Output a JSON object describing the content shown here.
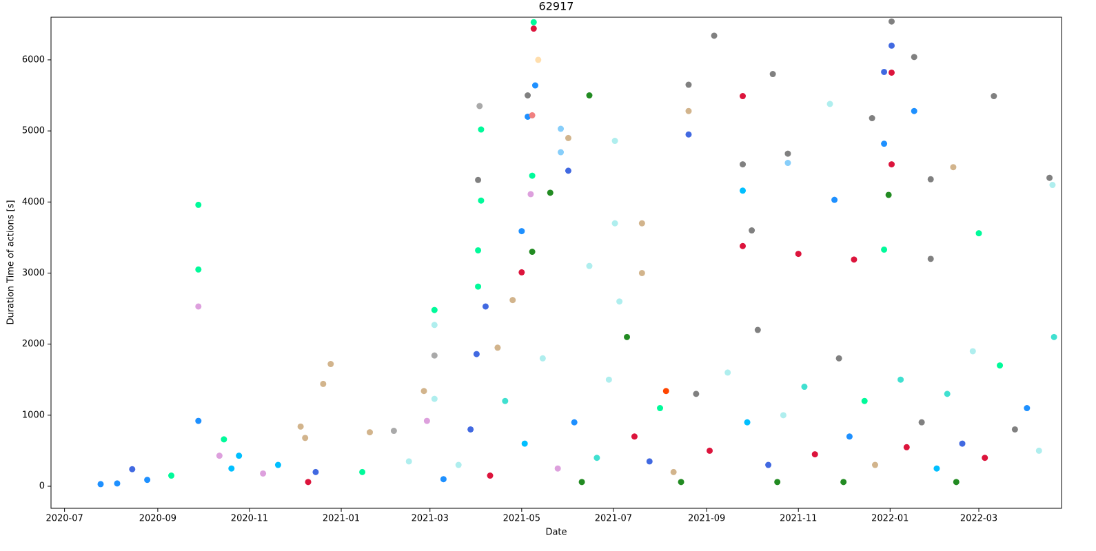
{
  "chart_data": {
    "type": "scatter",
    "title": "62917",
    "x_label": "Date",
    "y_label": "Duration Time of actions [s]",
    "xlim": [
      "2020-06-22",
      "2022-04-25"
    ],
    "ylim": [
      -310,
      6600
    ],
    "xticks": [
      {
        "value": "2020-07-01",
        "label": "2020-07"
      },
      {
        "value": "2020-09-01",
        "label": "2020-09"
      },
      {
        "value": "2020-11-01",
        "label": "2020-11"
      },
      {
        "value": "2021-01-01",
        "label": "2021-01"
      },
      {
        "value": "2021-03-01",
        "label": "2021-03"
      },
      {
        "value": "2021-05-01",
        "label": "2021-05"
      },
      {
        "value": "2021-07-01",
        "label": "2021-07"
      },
      {
        "value": "2021-09-01",
        "label": "2021-09"
      },
      {
        "value": "2021-11-01",
        "label": "2021-11"
      },
      {
        "value": "2022-01-01",
        "label": "2022-01"
      },
      {
        "value": "2022-03-01",
        "label": "2022-03"
      }
    ],
    "yticks": [
      0,
      1000,
      2000,
      3000,
      4000,
      5000,
      6000
    ],
    "grid": false,
    "x": [
      "2020-07-25",
      "2020-08-05",
      "2020-08-15",
      "2020-08-25",
      "2020-09-10",
      "2020-09-28",
      "2020-09-28",
      "2020-09-28",
      "2020-09-28",
      "2020-10-15",
      "2020-10-12",
      "2020-10-25",
      "2020-10-20",
      "2020-11-10",
      "2020-11-20",
      "2020-12-05",
      "2020-12-08",
      "2020-12-20",
      "2020-12-25",
      "2020-12-15",
      "2020-12-10",
      "2021-01-20",
      "2021-02-05",
      "2021-02-25",
      "2021-02-27",
      "2021-03-04",
      "2021-03-04",
      "2021-03-04",
      "2021-03-04",
      "2021-02-15",
      "2021-01-15",
      "2021-03-10",
      "2021-04-04",
      "2021-04-03",
      "2021-04-02",
      "2021-04-04",
      "2021-04-02",
      "2021-04-02",
      "2021-04-07",
      "2021-04-01",
      "2021-04-15",
      "2021-04-25",
      "2021-05-01",
      "2021-05-01",
      "2021-05-05",
      "2021-05-05",
      "2021-05-09",
      "2021-05-09",
      "2021-05-10",
      "2021-05-08",
      "2021-05-12",
      "2021-05-08",
      "2021-05-08",
      "2021-05-07",
      "2021-05-20",
      "2021-05-27",
      "2021-05-27",
      "2021-06-01",
      "2021-06-01",
      "2021-06-15",
      "2021-06-15",
      "2021-07-02",
      "2021-07-02",
      "2021-07-10",
      "2021-07-20",
      "2021-07-20",
      "2021-08-05",
      "2021-08-20",
      "2021-08-20",
      "2021-08-20",
      "2021-09-06",
      "2021-09-25",
      "2021-09-25",
      "2021-09-25",
      "2021-09-25",
      "2021-10-01",
      "2021-10-15",
      "2021-10-25",
      "2021-10-25",
      "2021-11-01",
      "2021-11-22",
      "2021-11-25",
      "2021-12-08",
      "2021-12-20",
      "2021-12-28",
      "2021-12-28",
      "2021-12-28",
      "2022-01-02",
      "2022-01-02",
      "2022-01-02",
      "2022-01-02",
      "2021-12-31",
      "2022-01-17",
      "2022-01-17",
      "2022-01-28",
      "2022-01-28",
      "2022-02-12",
      "2022-03-01",
      "2022-03-11",
      "2022-04-17",
      "2022-04-19",
      "2021-03-20",
      "2021-03-28",
      "2021-04-10",
      "2021-04-20",
      "2021-05-03",
      "2021-05-15",
      "2021-05-25",
      "2021-06-05",
      "2021-06-20",
      "2021-06-28",
      "2021-07-05",
      "2021-07-15",
      "2021-07-25",
      "2021-08-01",
      "2021-08-10",
      "2021-08-25",
      "2021-09-03",
      "2021-09-15",
      "2021-09-28",
      "2021-10-05",
      "2021-10-12",
      "2021-10-22",
      "2021-11-05",
      "2021-11-12",
      "2021-11-28",
      "2021-12-05",
      "2021-12-15",
      "2021-12-22",
      "2022-01-08",
      "2022-01-12",
      "2022-01-22",
      "2022-02-01",
      "2022-02-08",
      "2022-02-18",
      "2022-02-25",
      "2022-03-05",
      "2022-03-15",
      "2022-03-25",
      "2022-04-02",
      "2022-04-10",
      "2022-04-20",
      "2021-06-10",
      "2021-08-15",
      "2021-10-18",
      "2021-12-01",
      "2022-02-14"
    ],
    "values": [
      30,
      40,
      240,
      90,
      150,
      3960,
      3050,
      2530,
      920,
      660,
      430,
      430,
      250,
      180,
      300,
      840,
      680,
      1440,
      1720,
      200,
      60,
      760,
      780,
      1340,
      920,
      2480,
      2270,
      1840,
      1230,
      350,
      200,
      100,
      5020,
      5350,
      4310,
      4020,
      3320,
      2810,
      2530,
      1860,
      1950,
      2620,
      3590,
      3010,
      5200,
      5500,
      6530,
      6440,
      5640,
      5220,
      6000,
      4370,
      3300,
      4110,
      4130,
      5030,
      4700,
      4440,
      4900,
      5500,
      3100,
      4860,
      3700,
      2100,
      3700,
      3000,
      1340,
      5650,
      4950,
      5280,
      6340,
      5490,
      4530,
      4160,
      3380,
      3600,
      5800,
      4680,
      4550,
      3270,
      5380,
      4030,
      3190,
      5180,
      5830,
      4820,
      3330,
      6540,
      6200,
      5820,
      4530,
      4100,
      6040,
      5280,
      4320,
      3200,
      4490,
      3560,
      5490,
      4340,
      4240,
      300,
      800,
      150,
      1200,
      600,
      1800,
      250,
      900,
      400,
      1500,
      2600,
      700,
      350,
      1100,
      200,
      1300,
      500,
      1600,
      900,
      2200,
      300,
      1000,
      1400,
      450,
      1800,
      700,
      1200,
      300,
      1500,
      550,
      900,
      250,
      1300,
      600,
      1900,
      400,
      1700,
      800,
      1100,
      500,
      2100,
      60,
      60,
      60,
      60,
      60
    ],
    "colors": [
      "#1e90ff",
      "#1e90ff",
      "#4169e1",
      "#1e90ff",
      "#00fa9a",
      "#00fa9a",
      "#00fa9a",
      "#dda0dd",
      "#1e90ff",
      "#00fa9a",
      "#dda0dd",
      "#00bfff",
      "#00bfff",
      "#dda0dd",
      "#00bfff",
      "#d2b48c",
      "#d2b48c",
      "#d2b48c",
      "#d2b48c",
      "#4169e1",
      "#dc143c",
      "#d2b48c",
      "#a9a9a9",
      "#d2b48c",
      "#dda0dd",
      "#00fa9a",
      "#afeeee",
      "#a9a9a9",
      "#afeeee",
      "#afeeee",
      "#00fa9a",
      "#1e90ff",
      "#00fa9a",
      "#a9a9a9",
      "#808080",
      "#00fa9a",
      "#00fa9a",
      "#00fa9a",
      "#4169e1",
      "#4169e1",
      "#d2b48c",
      "#d2b48c",
      "#1e90ff",
      "#dc143c",
      "#1e90ff",
      "#808080",
      "#00fa9a",
      "#dc143c",
      "#1e90ff",
      "#f08080",
      "#ffdead",
      "#00fa9a",
      "#228b22",
      "#dda0dd",
      "#228b22",
      "#87cefa",
      "#87cefa",
      "#4169e1",
      "#d2b48c",
      "#228b22",
      "#afeeee",
      "#afeeee",
      "#afeeee",
      "#228b22",
      "#d2b48c",
      "#d2b48c",
      "#ff4500",
      "#808080",
      "#4169e1",
      "#d2b48c",
      "#808080",
      "#dc143c",
      "#808080",
      "#00bfff",
      "#dc143c",
      "#808080",
      "#808080",
      "#808080",
      "#87cefa",
      "#dc143c",
      "#afeeee",
      "#1e90ff",
      "#dc143c",
      "#808080",
      "#4169e1",
      "#1e90ff",
      "#00fa9a",
      "#808080",
      "#4169e1",
      "#dc143c",
      "#dc143c",
      "#228b22",
      "#808080",
      "#1e90ff",
      "#808080",
      "#808080",
      "#d2b48c",
      "#00fa9a",
      "#808080",
      "#808080",
      "#afeeee",
      "#afeeee",
      "#4169e1",
      "#dc143c",
      "#40e0d0",
      "#00bfff",
      "#afeeee",
      "#dda0dd",
      "#1e90ff",
      "#40e0d0",
      "#afeeee",
      "#afeeee",
      "#dc143c",
      "#4169e1",
      "#00fa9a",
      "#d2b48c",
      "#808080",
      "#dc143c",
      "#afeeee",
      "#00bfff",
      "#808080",
      "#4169e1",
      "#afeeee",
      "#40e0d0",
      "#dc143c",
      "#808080",
      "#1e90ff",
      "#00fa9a",
      "#d2b48c",
      "#40e0d0",
      "#dc143c",
      "#808080",
      "#00bfff",
      "#40e0d0",
      "#4169e1",
      "#afeeee",
      "#dc143c",
      "#00fa9a",
      "#808080",
      "#1e90ff",
      "#afeeee",
      "#40e0d0",
      "#228b22",
      "#228b22",
      "#228b22",
      "#228b22",
      "#228b22"
    ]
  }
}
